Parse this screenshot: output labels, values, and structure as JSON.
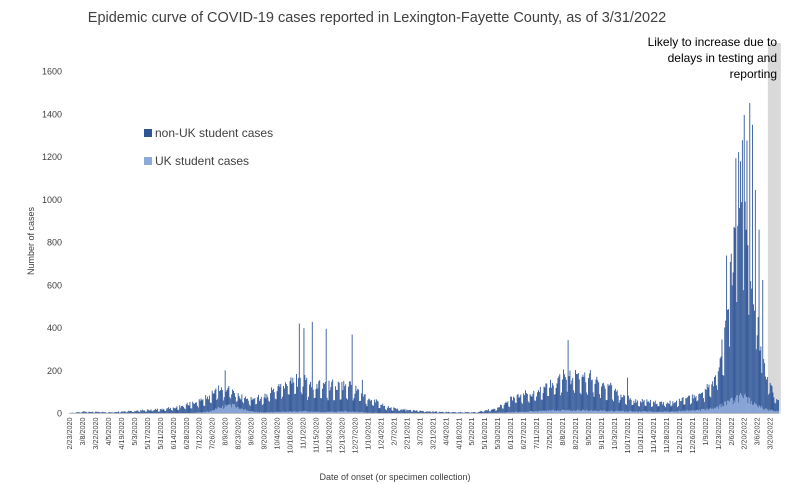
{
  "chart_data": {
    "type": "bar",
    "stacked": true,
    "title": "Epidemic curve of COVID-19 cases reported in Lexington-Fayette County, as of 3/31/2022",
    "xlabel": "Date of onset (or specimen collection)",
    "ylabel": "Number of cases",
    "ylim": [
      0,
      1600
    ],
    "yticks": [
      "0",
      "200",
      "400",
      "600",
      "800",
      "1000",
      "1200",
      "1400",
      "1600"
    ],
    "grid": false,
    "legend_position": "top-left",
    "note": [
      "Likely to increase due to",
      "delays in testing and",
      "reporting"
    ],
    "date_range": [
      "2/23/2020",
      "3/29/2022"
    ],
    "bar_unit": "daily",
    "x_tick_labels": [
      "2/23/2020",
      "3/8/2020",
      "3/22/2020",
      "4/5/2020",
      "4/19/2020",
      "5/3/2020",
      "5/17/2020",
      "5/31/2020",
      "6/14/2020",
      "6/28/2020",
      "7/12/2020",
      "7/26/2020",
      "8/9/2020",
      "8/23/2020",
      "9/6/2020",
      "9/20/2020",
      "10/4/2020",
      "10/18/2020",
      "11/1/2020",
      "11/15/2020",
      "11/29/2020",
      "12/13/2020",
      "12/27/2020",
      "1/10/2021",
      "1/24/2021",
      "2/7/2021",
      "2/21/2021",
      "3/7/2021",
      "3/21/2021",
      "4/4/2021",
      "4/18/2021",
      "5/2/2021",
      "5/16/2021",
      "5/30/2021",
      "6/13/2021",
      "6/27/2021",
      "7/11/2021",
      "7/25/2021",
      "8/8/2021",
      "8/22/2021",
      "9/5/2021",
      "9/19/2021",
      "10/3/2021",
      "10/17/2021",
      "10/31/2021",
      "11/14/2021",
      "11/28/2021",
      "12/12/2021",
      "12/26/2021",
      "1/9/2022",
      "1/23/2022",
      "2/6/2022",
      "2/20/2022",
      "3/6/2022",
      "3/20/2022"
    ],
    "series": [
      {
        "name": "non-UK student cases",
        "color": "#2f5597",
        "keypoints": [
          [
            0,
            2
          ],
          [
            15,
            8
          ],
          [
            30,
            8
          ],
          [
            45,
            5
          ],
          [
            60,
            10
          ],
          [
            80,
            14
          ],
          [
            100,
            20
          ],
          [
            120,
            30
          ],
          [
            140,
            55
          ],
          [
            155,
            75
          ],
          [
            165,
            85
          ],
          [
            175,
            60
          ],
          [
            190,
            50
          ],
          [
            205,
            60
          ],
          [
            220,
            90
          ],
          [
            235,
            130
          ],
          [
            250,
            140
          ],
          [
            265,
            115
          ],
          [
            280,
            120
          ],
          [
            295,
            120
          ],
          [
            305,
            110
          ],
          [
            320,
            70
          ],
          [
            340,
            30
          ],
          [
            360,
            15
          ],
          [
            380,
            10
          ],
          [
            400,
            6
          ],
          [
            420,
            5
          ],
          [
            440,
            5
          ],
          [
            460,
            20
          ],
          [
            475,
            55
          ],
          [
            490,
            80
          ],
          [
            505,
            80
          ],
          [
            520,
            120
          ],
          [
            535,
            145
          ],
          [
            550,
            160
          ],
          [
            565,
            145
          ],
          [
            580,
            110
          ],
          [
            595,
            75
          ],
          [
            610,
            50
          ],
          [
            625,
            45
          ],
          [
            640,
            40
          ],
          [
            655,
            45
          ],
          [
            670,
            60
          ],
          [
            685,
            80
          ],
          [
            695,
            120
          ],
          [
            705,
            250
          ],
          [
            712,
            500
          ],
          [
            718,
            750
          ],
          [
            722,
            900
          ],
          [
            726,
            850
          ],
          [
            732,
            700
          ],
          [
            738,
            500
          ],
          [
            745,
            300
          ],
          [
            752,
            140
          ],
          [
            760,
            70
          ],
          [
            768,
            35
          ],
          [
            775,
            22
          ],
          [
            781,
            12
          ],
          [
            786,
            7
          ],
          [
            796,
            2
          ]
        ],
        "spikes": [
          [
            168,
            160
          ],
          [
            248,
            410
          ],
          [
            253,
            390
          ],
          [
            262,
            420
          ],
          [
            277,
            390
          ],
          [
            305,
            360
          ],
          [
            316,
            150
          ],
          [
            362,
            20
          ],
          [
            538,
            330
          ],
          [
            602,
            160
          ],
          [
            709,
            700
          ],
          [
            713,
            640
          ],
          [
            719,
            1120
          ],
          [
            726,
            1200
          ],
          [
            728,
            1310
          ],
          [
            731,
            1200
          ],
          [
            734,
            1380
          ],
          [
            737,
            1310
          ],
          [
            740,
            1000
          ],
          [
            744,
            820
          ],
          [
            748,
            600
          ]
        ]
      },
      {
        "name": "UK student cases",
        "color": "#8eaadb",
        "keypoints": [
          [
            0,
            0
          ],
          [
            120,
            0
          ],
          [
            150,
            8
          ],
          [
            165,
            30
          ],
          [
            175,
            40
          ],
          [
            185,
            25
          ],
          [
            195,
            10
          ],
          [
            210,
            5
          ],
          [
            230,
            8
          ],
          [
            250,
            10
          ],
          [
            280,
            8
          ],
          [
            300,
            10
          ],
          [
            320,
            5
          ],
          [
            340,
            2
          ],
          [
            360,
            2
          ],
          [
            400,
            1
          ],
          [
            440,
            1
          ],
          [
            470,
            5
          ],
          [
            500,
            10
          ],
          [
            530,
            15
          ],
          [
            560,
            15
          ],
          [
            600,
            10
          ],
          [
            640,
            8
          ],
          [
            680,
            15
          ],
          [
            700,
            30
          ],
          [
            715,
            60
          ],
          [
            725,
            80
          ],
          [
            730,
            75
          ],
          [
            740,
            45
          ],
          [
            750,
            20
          ],
          [
            765,
            10
          ],
          [
            780,
            5
          ],
          [
            796,
            2
          ]
        ]
      }
    ],
    "projection_region": {
      "from": "3/18/2022",
      "to": "3/31/2022",
      "color": "#d9d9d9"
    }
  }
}
